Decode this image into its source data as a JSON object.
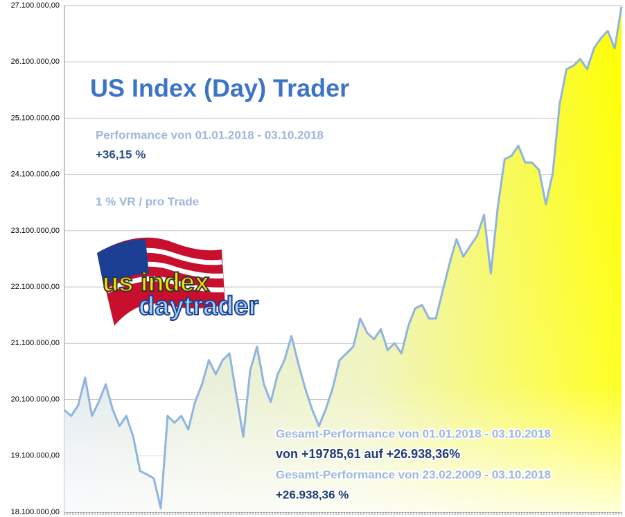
{
  "chart_data": {
    "type": "area",
    "title": "US Index (Day) Trader",
    "annotations": [
      "Performance  von  01.01.2018 - 03.10.2018",
      "+36,15 %",
      "1 % VR / pro Trade",
      "Gesamt-Performance  von  01.01.2018 - 03.10.2018",
      "von +19785,61 auf  +26.938,36%",
      "Gesamt-Performance  von  23.02.2009 - 03.10.2018",
      "+26.938,36 %"
    ],
    "logo": [
      "us index",
      "daytrader"
    ],
    "color": "#8fb4e0",
    "values": [
      19910000,
      19810000,
      20000000,
      20490000,
      19810000,
      20060000,
      20370000,
      19930000,
      19630000,
      19810000,
      19440000,
      18830000,
      18770000,
      18700000,
      18170000,
      19810000,
      19690000,
      19810000,
      19570000,
      20060000,
      20370000,
      20800000,
      20550000,
      20800000,
      20920000,
      20180000,
      19440000,
      20610000,
      21040000,
      20370000,
      20060000,
      20550000,
      20800000,
      21230000,
      20740000,
      20300000,
      19930000,
      19630000,
      19930000,
      20300000,
      20800000,
      20920000,
      21040000,
      21540000,
      21290000,
      21170000,
      21350000,
      20980000,
      21100000,
      20920000,
      21410000,
      21720000,
      21780000,
      21540000,
      21540000,
      22030000,
      22520000,
      22950000,
      22640000,
      22830000,
      23010000,
      23380000,
      22340000,
      23510000,
      24370000,
      24430000,
      24610000,
      24310000,
      24310000,
      24180000,
      23570000,
      24120000,
      25350000,
      25970000,
      26030000,
      26150000,
      25970000,
      26340000,
      26520000,
      26650000,
      26340000,
      27080000
    ],
    "ylim": [
      18100000,
      27100000
    ],
    "yticks": [
      {
        "value": 18100000,
        "label": "18.100.000,00"
      },
      {
        "value": 19100000,
        "label": "19.100.000,00"
      },
      {
        "value": 20100000,
        "label": "20.100.000,00"
      },
      {
        "value": 21100000,
        "label": "21.100.000,00"
      },
      {
        "value": 22100000,
        "label": "22.100.000,00"
      },
      {
        "value": 23100000,
        "label": "23.100.000,00"
      },
      {
        "value": 24100000,
        "label": "24.100.000,00"
      },
      {
        "value": 25100000,
        "label": "25.100.000,00"
      },
      {
        "value": 26100000,
        "label": "26.100.000,00"
      },
      {
        "value": 27100000,
        "label": "27.100.000,00"
      }
    ],
    "grid": true
  }
}
